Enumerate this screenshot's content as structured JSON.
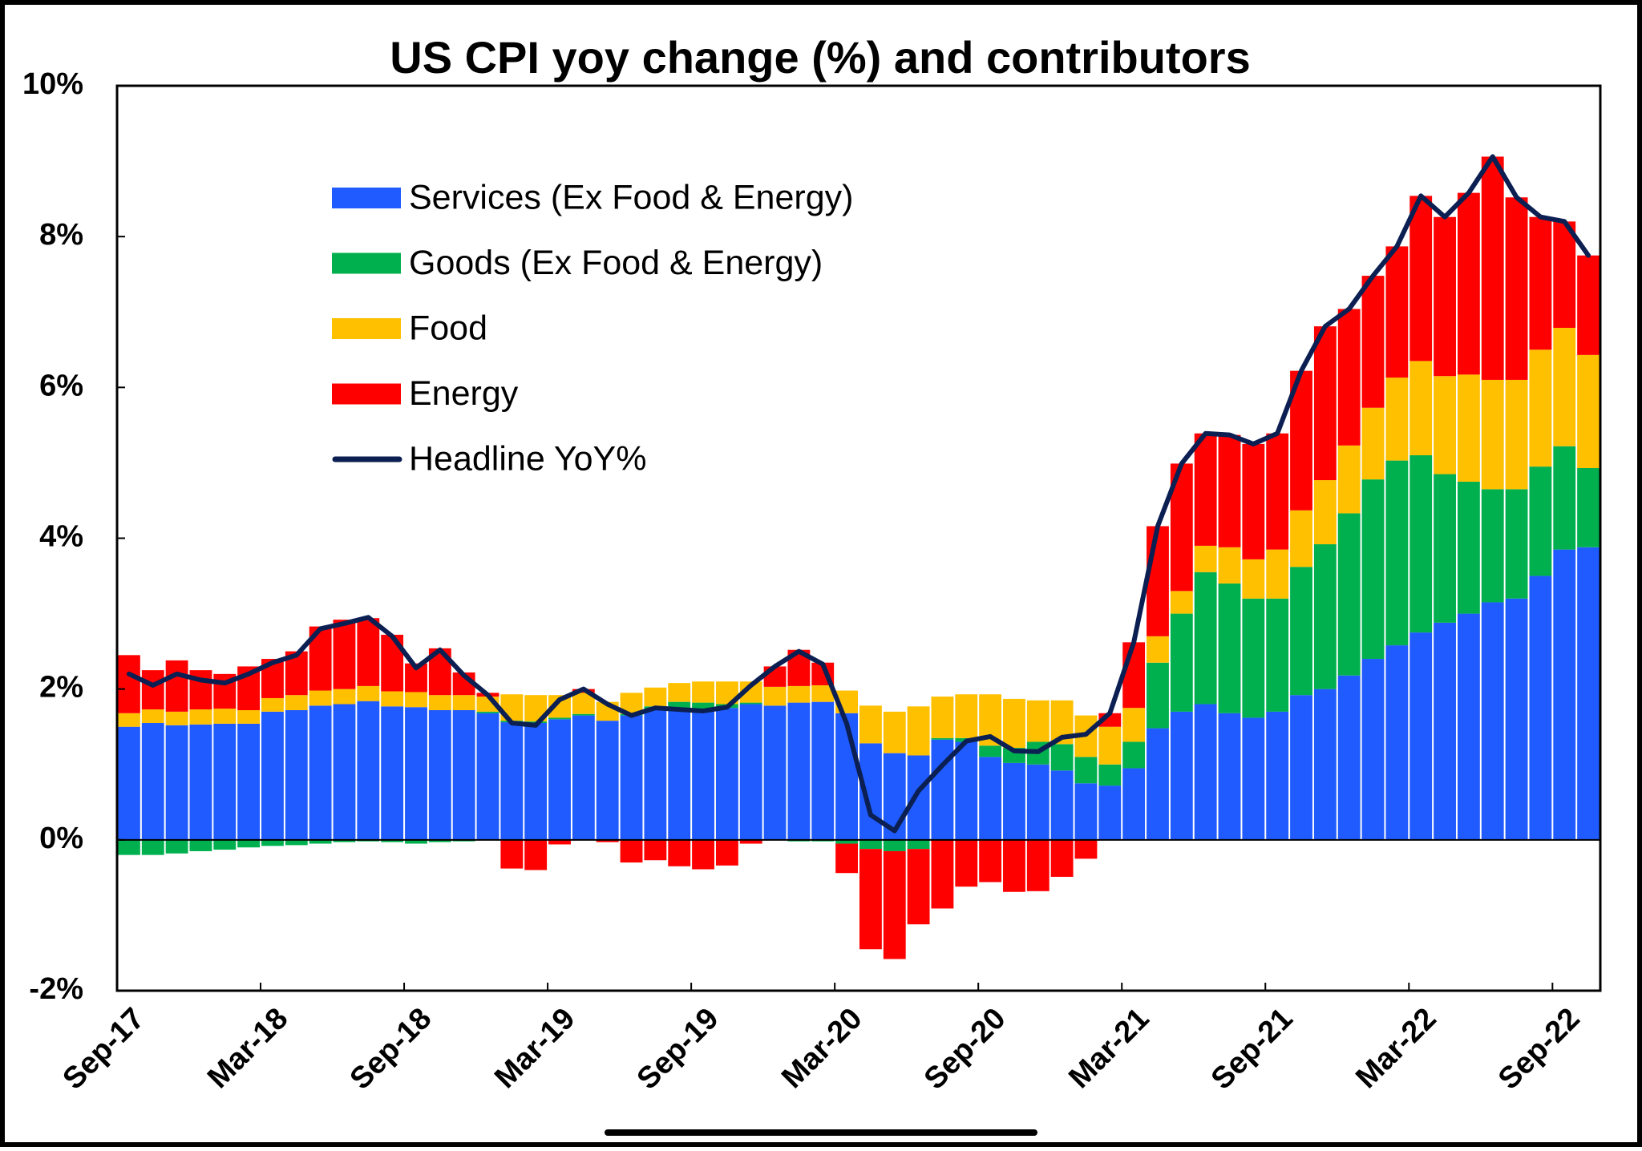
{
  "chart_data": {
    "type": "bar",
    "stacked": true,
    "title": "US CPI yoy change (%) and contributors",
    "categories": [
      "Sep-17",
      null,
      null,
      null,
      null,
      null,
      "Mar-18",
      null,
      null,
      null,
      null,
      null,
      "Sep-18",
      null,
      null,
      null,
      null,
      null,
      "Mar-19",
      null,
      null,
      null,
      null,
      null,
      "Sep-19",
      null,
      null,
      null,
      null,
      null,
      "Mar-20",
      null,
      null,
      null,
      null,
      null,
      "Sep-20",
      null,
      null,
      null,
      null,
      null,
      "Mar-21",
      null,
      null,
      null,
      null,
      null,
      "Sep-21",
      null,
      null,
      null,
      null,
      null,
      "Mar-22",
      null,
      null,
      null,
      null,
      null,
      "Sep-22",
      null
    ],
    "series": [
      {
        "name": "Services (Ex Food & Energy)",
        "color": "#1f5bff",
        "values": [
          1.5,
          1.55,
          1.52,
          1.53,
          1.54,
          1.54,
          1.7,
          1.72,
          1.78,
          1.8,
          1.84,
          1.77,
          1.76,
          1.72,
          1.72,
          1.68,
          1.56,
          1.55,
          1.6,
          1.65,
          1.58,
          1.65,
          1.72,
          1.75,
          1.72,
          1.75,
          1.8,
          1.78,
          1.82,
          1.83,
          1.68,
          1.28,
          1.15,
          1.12,
          1.33,
          1.3,
          1.1,
          1.02,
          1.0,
          0.92,
          0.75,
          0.72,
          0.95,
          1.48,
          1.7,
          1.8,
          1.68,
          1.62,
          1.7,
          1.92,
          2.0,
          2.18,
          2.4,
          2.58,
          2.75,
          2.88,
          3.0,
          3.15,
          3.2,
          3.5,
          3.85,
          3.88
        ]
      },
      {
        "name": "Goods (Ex Food & Energy)",
        "color": "#00b04f",
        "values": [
          -0.2,
          -0.2,
          -0.18,
          -0.15,
          -0.13,
          -0.1,
          -0.08,
          -0.07,
          -0.05,
          -0.03,
          -0.02,
          -0.03,
          -0.05,
          -0.03,
          -0.02,
          0.02,
          0.02,
          0.02,
          0.02,
          0.02,
          0.0,
          0.02,
          0.05,
          0.08,
          0.1,
          0.05,
          0.02,
          0.0,
          -0.02,
          -0.02,
          -0.05,
          -0.12,
          -0.15,
          -0.12,
          0.02,
          0.05,
          0.15,
          0.2,
          0.3,
          0.35,
          0.35,
          0.28,
          0.35,
          0.87,
          1.3,
          1.75,
          1.72,
          1.58,
          1.5,
          1.7,
          1.92,
          2.15,
          2.38,
          2.45,
          2.35,
          1.97,
          1.75,
          1.5,
          1.45,
          1.45,
          1.37,
          1.05
        ]
      },
      {
        "name": "Food",
        "color": "#ffc000",
        "values": [
          0.18,
          0.18,
          0.18,
          0.2,
          0.2,
          0.18,
          0.18,
          0.2,
          0.2,
          0.2,
          0.2,
          0.2,
          0.2,
          0.2,
          0.2,
          0.2,
          0.35,
          0.35,
          0.3,
          0.28,
          0.25,
          0.28,
          0.25,
          0.25,
          0.28,
          0.3,
          0.28,
          0.25,
          0.22,
          0.22,
          0.3,
          0.5,
          0.55,
          0.65,
          0.55,
          0.58,
          0.68,
          0.65,
          0.55,
          0.58,
          0.55,
          0.5,
          0.45,
          0.35,
          0.3,
          0.35,
          0.48,
          0.52,
          0.65,
          0.75,
          0.85,
          0.9,
          0.95,
          1.1,
          1.25,
          1.3,
          1.42,
          1.45,
          1.45,
          1.55,
          1.57,
          1.5
        ]
      },
      {
        "name": "Energy",
        "color": "#ff0000",
        "values": [
          0.77,
          0.52,
          0.68,
          0.52,
          0.46,
          0.58,
          0.52,
          0.58,
          0.85,
          0.92,
          0.9,
          0.75,
          0.38,
          0.62,
          0.3,
          0.05,
          -0.38,
          -0.4,
          -0.06,
          0.05,
          -0.03,
          -0.3,
          -0.27,
          -0.35,
          -0.39,
          -0.34,
          -0.05,
          0.27,
          0.48,
          0.3,
          -0.39,
          -1.33,
          -1.43,
          -1.0,
          -0.91,
          -0.62,
          -0.56,
          -0.69,
          -0.68,
          -0.49,
          -0.25,
          0.18,
          0.87,
          1.46,
          1.69,
          1.49,
          1.49,
          1.53,
          1.54,
          1.85,
          2.04,
          1.81,
          1.75,
          1.74,
          2.19,
          2.11,
          2.41,
          2.96,
          2.42,
          1.76,
          1.41,
          1.32
        ]
      },
      {
        "name": "Headline YoY%",
        "color": "#0c1f52",
        "type": "line",
        "values": [
          2.2,
          2.05,
          2.2,
          2.12,
          2.08,
          2.2,
          2.35,
          2.45,
          2.8,
          2.87,
          2.95,
          2.7,
          2.28,
          2.52,
          2.18,
          1.92,
          1.55,
          1.52,
          1.86,
          2.0,
          1.8,
          1.65,
          1.75,
          1.73,
          1.71,
          1.76,
          2.05,
          2.3,
          2.5,
          2.33,
          1.54,
          0.33,
          0.12,
          0.65,
          0.99,
          1.31,
          1.37,
          1.18,
          1.17,
          1.36,
          1.4,
          1.68,
          2.62,
          4.16,
          4.99,
          5.39,
          5.37,
          5.25,
          5.39,
          6.22,
          6.81,
          7.04,
          7.48,
          7.87,
          8.54,
          8.26,
          8.58,
          9.06,
          8.52,
          8.26,
          8.2,
          7.75
        ]
      }
    ],
    "ylim": [
      -2,
      10
    ],
    "yticks": [
      {
        "value": -2,
        "label": "-2%"
      },
      {
        "value": 0,
        "label": "0%"
      },
      {
        "value": 2,
        "label": "2%"
      },
      {
        "value": 4,
        "label": "4%"
      },
      {
        "value": 6,
        "label": "6%"
      },
      {
        "value": 8,
        "label": "8%"
      },
      {
        "value": 10,
        "label": "10%"
      }
    ],
    "grid": false,
    "legend": "upper left"
  }
}
